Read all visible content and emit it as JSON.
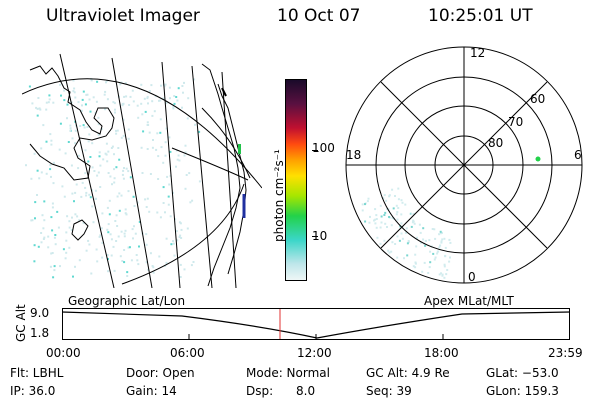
{
  "header": {
    "title": "Ultraviolet Imager",
    "date": "10 Oct 07",
    "time": "10:25:01 UT"
  },
  "colorbar": {
    "label": "photon cm⁻²s⁻¹",
    "ticks": [
      "100",
      "10"
    ],
    "colors": [
      "#1a0a2a",
      "#7a1a4a",
      "#e0101a",
      "#ff7a00",
      "#ffd400",
      "#a6e600",
      "#22d24a",
      "#3ad6c8",
      "#bfe6ea"
    ]
  },
  "polar": {
    "hour_labels": [
      "12",
      "18",
      "6",
      "0"
    ],
    "lat_labels": [
      "60",
      "70",
      "80"
    ]
  },
  "timeline": {
    "left_label": "Geographic Lat/Lon",
    "right_label": "Apex MLat/MLT",
    "axis_label": "GC Alt",
    "y_ticks": [
      "9.0",
      "1.8"
    ],
    "x_ticks": [
      "00:00",
      "06:00",
      "12:00",
      "18:00",
      "23:59"
    ],
    "marker_color": "#e03030"
  },
  "info": {
    "flt": "Flt: LBHL",
    "door": "Door: Open",
    "mode": "Mode: Normal",
    "gcalt": "GC Alt: 4.9 Re",
    "glat": "GLat: −53.0",
    "ip": "IP: 36.0",
    "gain": "Gain: 14",
    "dsp": "Dsp:      8.0",
    "seq": "Seq: 39",
    "glon": "GLon: 159.3"
  }
}
